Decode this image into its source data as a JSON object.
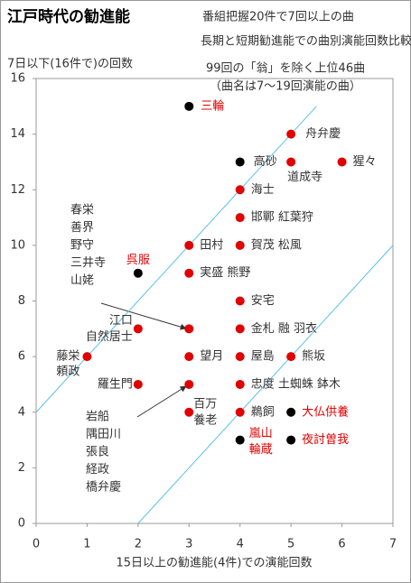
{
  "chart_data": {
    "type": "scatter",
    "title": "江戸時代の勧進能",
    "subtitle": "番組把握20件で7回以上の曲",
    "subtitle2": "長期と短期勧進能での曲別演能回数比較",
    "y_label": "7日以下(16件で)の回数",
    "x_label": "15日以上の勧進能(4件)での演能回数",
    "note": [
      "99回の「翁」を除く上位46曲",
      "（曲名は7～19回演能の曲）"
    ],
    "xlim": [
      0,
      7
    ],
    "xticks": [
      0,
      1,
      2,
      3,
      4,
      5,
      6,
      7
    ],
    "ylim": [
      0,
      16
    ],
    "yticks": [
      0,
      2,
      4,
      6,
      8,
      10,
      12,
      14,
      16
    ],
    "line_color": "#5bc0eb",
    "reference_lines": [
      {
        "x": [
          0,
          5.5
        ],
        "y": [
          4,
          15
        ]
      },
      {
        "x": [
          2,
          7
        ],
        "y": [
          0,
          10
        ]
      }
    ],
    "series": [
      {
        "color": "#e00000",
        "x": [
          5,
          5,
          6,
          4,
          4,
          3,
          4,
          3,
          4,
          2,
          3,
          4,
          1,
          3,
          4,
          5,
          2,
          3,
          4,
          3,
          4
        ],
        "y": [
          14,
          13,
          13,
          12,
          11,
          10,
          10,
          9,
          8,
          7,
          7,
          7,
          6,
          6,
          6,
          6,
          5,
          5,
          5,
          4,
          4
        ],
        "labels": [
          [
            "舟弁慶"
          ],
          [
            "道成寺"
          ],
          [
            "猩々"
          ],
          [
            "海士"
          ],
          [
            "邯鄲 紅葉狩"
          ],
          [
            "田村"
          ],
          [
            "賀茂 松風"
          ],
          [
            "実盛 熊野"
          ],
          [
            "安宅"
          ],
          [
            "江口",
            "自然居士"
          ],
          null,
          [
            "金札 融 羽衣"
          ],
          [
            "藤栄",
            "頼政"
          ],
          [
            "望月"
          ],
          [
            "屋島"
          ],
          [
            "熊坂"
          ],
          [
            "羅生門"
          ],
          null,
          [
            "忠度 土蜘蛛 鉢木"
          ],
          [
            "百万",
            "養老"
          ],
          [
            "鵜飼"
          ]
        ],
        "label_colors": [
          "#333",
          "#333",
          "#333",
          "#333",
          "#333",
          "#333",
          "#333",
          "#333",
          "#333",
          "#333",
          null,
          "#333",
          "#333",
          "#333",
          "#333",
          "#333",
          "#333",
          null,
          "#333",
          "#333",
          "#333"
        ]
      },
      {
        "color": "#000000",
        "x": [
          3,
          4,
          2,
          5,
          4,
          5
        ],
        "y": [
          15,
          13,
          9,
          4,
          3,
          3
        ],
        "labels": [
          [
            "三輪"
          ],
          [
            "高砂"
          ],
          [
            "呉服"
          ],
          [
            "大仏供養"
          ],
          [
            "嵐山",
            "輪蔵"
          ],
          [
            "夜討曽我"
          ]
        ],
        "label_colors": [
          "#e00000",
          "#333",
          "#e00000",
          "#e00000",
          "#e00000",
          "#e00000"
        ]
      }
    ],
    "annotations": [
      {
        "lines": [
          "春栄",
          "善界",
          "野守",
          "三井寺",
          "山姥"
        ]
      },
      {
        "lines": [
          "岩船",
          "隅田川",
          "張良",
          "経政",
          "橋弁慶"
        ]
      }
    ]
  }
}
